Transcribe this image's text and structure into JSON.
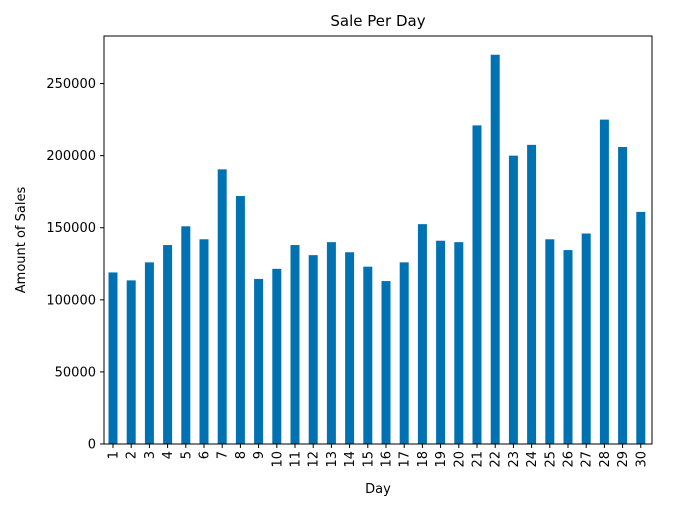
{
  "chart_data": {
    "type": "bar",
    "title": "Sale Per Day",
    "xlabel": "Day",
    "ylabel": "Amount of Sales",
    "categories": [
      "1",
      "2",
      "3",
      "4",
      "5",
      "6",
      "7",
      "8",
      "9",
      "10",
      "11",
      "12",
      "13",
      "14",
      "15",
      "16",
      "17",
      "18",
      "19",
      "20",
      "21",
      "22",
      "23",
      "24",
      "25",
      "26",
      "27",
      "28",
      "29",
      "30"
    ],
    "values": [
      119000,
      113500,
      126000,
      138000,
      151000,
      142000,
      190500,
      172000,
      114500,
      121500,
      138000,
      131000,
      140000,
      133000,
      123000,
      113000,
      126000,
      152500,
      141000,
      140000,
      221000,
      270000,
      200000,
      207500,
      142000,
      134500,
      146000,
      225000,
      206000,
      161000
    ],
    "ylim": [
      0,
      283000
    ],
    "yticks": [
      0,
      50000,
      100000,
      150000,
      200000,
      250000
    ],
    "grid": false,
    "bar_color": "#0072b2"
  }
}
